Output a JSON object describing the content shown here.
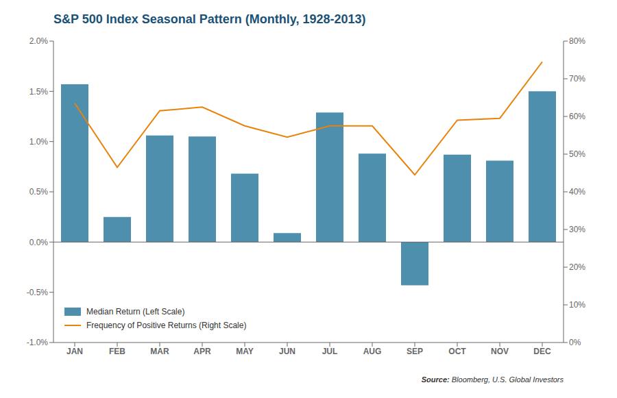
{
  "chart_data": {
    "type": "bar",
    "title": "S&P 500 Index Seasonal Pattern (Monthly, 1928-2013)",
    "categories": [
      "JAN",
      "FEB",
      "MAR",
      "APR",
      "MAY",
      "JUN",
      "JUL",
      "AUG",
      "SEP",
      "OCT",
      "NOV",
      "DEC"
    ],
    "series": [
      {
        "name": "Median Return (Left Scale)",
        "type": "bar",
        "color": "#4d8fac",
        "values": [
          1.57,
          0.25,
          1.06,
          1.05,
          0.68,
          0.09,
          1.29,
          0.88,
          -0.43,
          0.87,
          0.81,
          1.5
        ]
      },
      {
        "name": "Frequency of Positive Returns (Right Scale)",
        "type": "line",
        "color": "#e8820a",
        "axis": "y2",
        "values": [
          63.5,
          46.5,
          61.5,
          62.5,
          57.5,
          54.5,
          57.5,
          57.5,
          44.5,
          59.0,
          59.5,
          74.5
        ]
      }
    ],
    "ylim": [
      -1.0,
      2.0
    ],
    "yticks": [
      {
        "value": -1.0,
        "label": "-1.0%"
      },
      {
        "value": -0.5,
        "label": "-0.5%"
      },
      {
        "value": 0.0,
        "label": "0.0%"
      },
      {
        "value": 0.5,
        "label": "0.5%"
      },
      {
        "value": 1.0,
        "label": "1.0%"
      },
      {
        "value": 1.5,
        "label": "1.5%"
      },
      {
        "value": 2.0,
        "label": "2.0%"
      }
    ],
    "y2lim": [
      0,
      80
    ],
    "y2ticks": [
      {
        "value": 0,
        "label": "0%"
      },
      {
        "value": 10,
        "label": "10%"
      },
      {
        "value": 20,
        "label": "20%"
      },
      {
        "value": 30,
        "label": "30%"
      },
      {
        "value": 40,
        "label": "40%"
      },
      {
        "value": 50,
        "label": "50%"
      },
      {
        "value": 60,
        "label": "60%"
      },
      {
        "value": 70,
        "label": "70%"
      },
      {
        "value": 80,
        "label": "80%"
      }
    ],
    "legend": "lower left",
    "grid": false,
    "annotations": [
      "Source:",
      "Bloomberg, U.S. Global Investors"
    ]
  }
}
